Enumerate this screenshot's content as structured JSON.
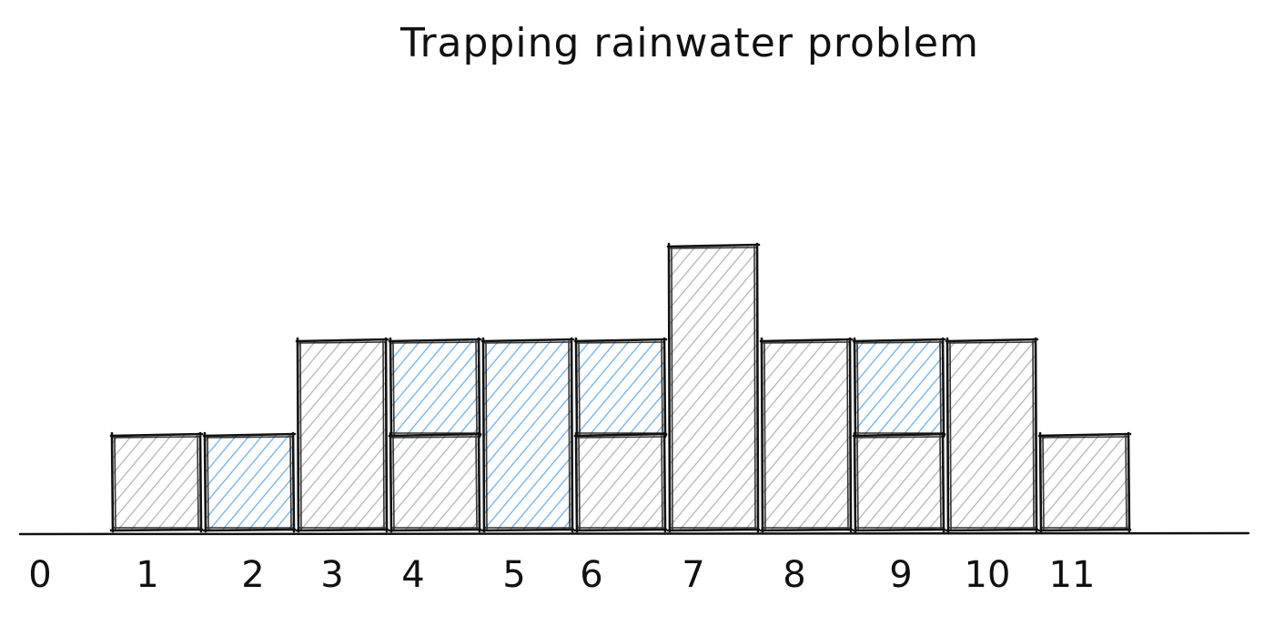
{
  "title": "Trapping rainwater problem",
  "colors": {
    "ink": "#111111",
    "bar_fill": "#b3b6b9",
    "water_fill": "#6fb0e8"
  },
  "fill_style": "hachure",
  "chart_data": {
    "type": "bar",
    "title": "Trapping rainwater problem",
    "x_tick_labels": [
      "0",
      "1",
      "2",
      "3",
      "4",
      "5",
      "6",
      "7",
      "8",
      "9",
      "10",
      "11"
    ],
    "bars": [
      {
        "label": "1",
        "height": 1,
        "water": 0
      },
      {
        "label": "2",
        "height": 0,
        "water": 1
      },
      {
        "label": "3",
        "height": 2,
        "water": 0
      },
      {
        "label": "4",
        "height": 1,
        "water": 1
      },
      {
        "label": "5",
        "height": 0,
        "water": 2
      },
      {
        "label": "6",
        "height": 1,
        "water": 1
      },
      {
        "label": "7",
        "height": 3,
        "water": 0
      },
      {
        "label": "8",
        "height": 2,
        "water": 0
      },
      {
        "label": "9",
        "height": 1,
        "water": 1
      },
      {
        "label": "10",
        "height": 2,
        "water": 0
      },
      {
        "label": "11",
        "height": 1,
        "water": 0
      }
    ]
  }
}
